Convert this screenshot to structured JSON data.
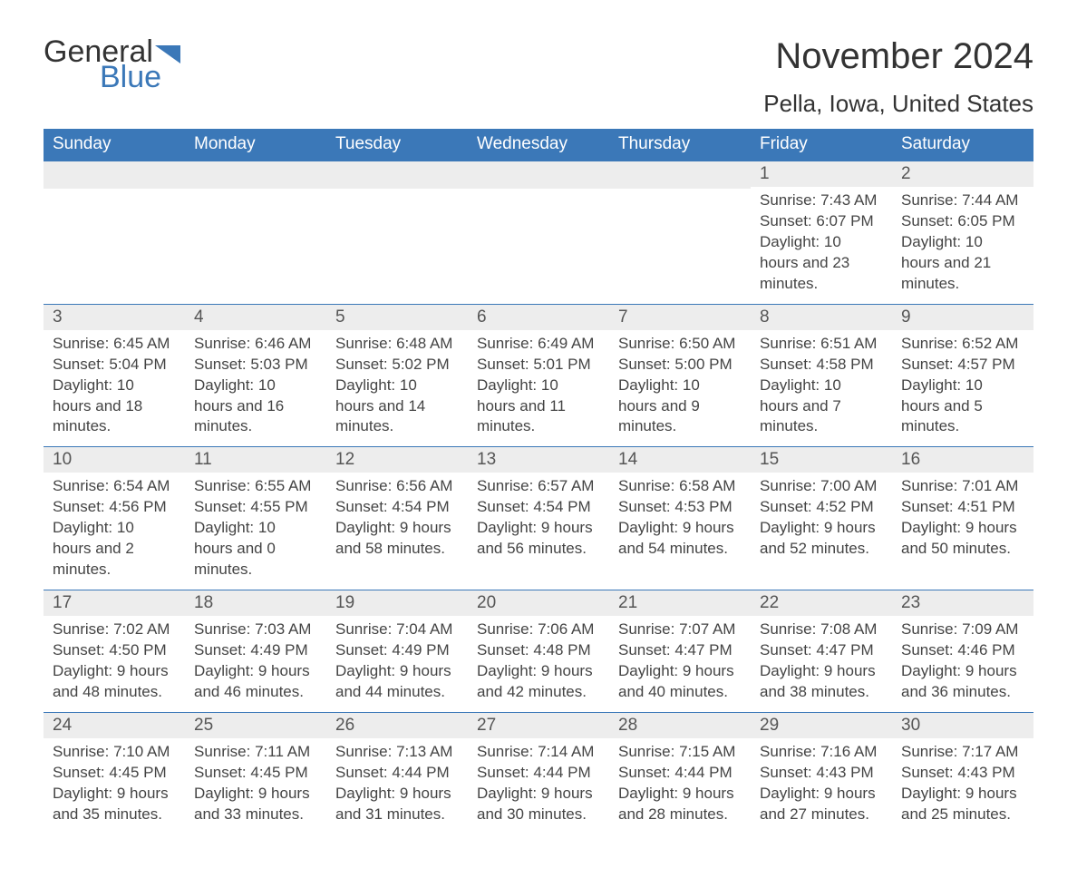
{
  "logo": {
    "general": "General",
    "blue": "Blue",
    "flag_color": "#3b78b8"
  },
  "title": "November 2024",
  "location": "Pella, Iowa, United States",
  "colors": {
    "header_bg": "#3b78b8",
    "header_text": "#ffffff",
    "daynum_bg": "#ededed",
    "text": "#333333",
    "body_text": "#444444",
    "week_divider": "#3b78b8"
  },
  "day_names": [
    "Sunday",
    "Monday",
    "Tuesday",
    "Wednesday",
    "Thursday",
    "Friday",
    "Saturday"
  ],
  "weeks": [
    [
      {
        "blank": true
      },
      {
        "blank": true
      },
      {
        "blank": true
      },
      {
        "blank": true
      },
      {
        "blank": true
      },
      {
        "day": "1",
        "sunrise": "Sunrise: 7:43 AM",
        "sunset": "Sunset: 6:07 PM",
        "daylight": "Daylight: 10 hours and 23 minutes."
      },
      {
        "day": "2",
        "sunrise": "Sunrise: 7:44 AM",
        "sunset": "Sunset: 6:05 PM",
        "daylight": "Daylight: 10 hours and 21 minutes."
      }
    ],
    [
      {
        "day": "3",
        "sunrise": "Sunrise: 6:45 AM",
        "sunset": "Sunset: 5:04 PM",
        "daylight": "Daylight: 10 hours and 18 minutes."
      },
      {
        "day": "4",
        "sunrise": "Sunrise: 6:46 AM",
        "sunset": "Sunset: 5:03 PM",
        "daylight": "Daylight: 10 hours and 16 minutes."
      },
      {
        "day": "5",
        "sunrise": "Sunrise: 6:48 AM",
        "sunset": "Sunset: 5:02 PM",
        "daylight": "Daylight: 10 hours and 14 minutes."
      },
      {
        "day": "6",
        "sunrise": "Sunrise: 6:49 AM",
        "sunset": "Sunset: 5:01 PM",
        "daylight": "Daylight: 10 hours and 11 minutes."
      },
      {
        "day": "7",
        "sunrise": "Sunrise: 6:50 AM",
        "sunset": "Sunset: 5:00 PM",
        "daylight": "Daylight: 10 hours and 9 minutes."
      },
      {
        "day": "8",
        "sunrise": "Sunrise: 6:51 AM",
        "sunset": "Sunset: 4:58 PM",
        "daylight": "Daylight: 10 hours and 7 minutes."
      },
      {
        "day": "9",
        "sunrise": "Sunrise: 6:52 AM",
        "sunset": "Sunset: 4:57 PM",
        "daylight": "Daylight: 10 hours and 5 minutes."
      }
    ],
    [
      {
        "day": "10",
        "sunrise": "Sunrise: 6:54 AM",
        "sunset": "Sunset: 4:56 PM",
        "daylight": "Daylight: 10 hours and 2 minutes."
      },
      {
        "day": "11",
        "sunrise": "Sunrise: 6:55 AM",
        "sunset": "Sunset: 4:55 PM",
        "daylight": "Daylight: 10 hours and 0 minutes."
      },
      {
        "day": "12",
        "sunrise": "Sunrise: 6:56 AM",
        "sunset": "Sunset: 4:54 PM",
        "daylight": "Daylight: 9 hours and 58 minutes."
      },
      {
        "day": "13",
        "sunrise": "Sunrise: 6:57 AM",
        "sunset": "Sunset: 4:54 PM",
        "daylight": "Daylight: 9 hours and 56 minutes."
      },
      {
        "day": "14",
        "sunrise": "Sunrise: 6:58 AM",
        "sunset": "Sunset: 4:53 PM",
        "daylight": "Daylight: 9 hours and 54 minutes."
      },
      {
        "day": "15",
        "sunrise": "Sunrise: 7:00 AM",
        "sunset": "Sunset: 4:52 PM",
        "daylight": "Daylight: 9 hours and 52 minutes."
      },
      {
        "day": "16",
        "sunrise": "Sunrise: 7:01 AM",
        "sunset": "Sunset: 4:51 PM",
        "daylight": "Daylight: 9 hours and 50 minutes."
      }
    ],
    [
      {
        "day": "17",
        "sunrise": "Sunrise: 7:02 AM",
        "sunset": "Sunset: 4:50 PM",
        "daylight": "Daylight: 9 hours and 48 minutes."
      },
      {
        "day": "18",
        "sunrise": "Sunrise: 7:03 AM",
        "sunset": "Sunset: 4:49 PM",
        "daylight": "Daylight: 9 hours and 46 minutes."
      },
      {
        "day": "19",
        "sunrise": "Sunrise: 7:04 AM",
        "sunset": "Sunset: 4:49 PM",
        "daylight": "Daylight: 9 hours and 44 minutes."
      },
      {
        "day": "20",
        "sunrise": "Sunrise: 7:06 AM",
        "sunset": "Sunset: 4:48 PM",
        "daylight": "Daylight: 9 hours and 42 minutes."
      },
      {
        "day": "21",
        "sunrise": "Sunrise: 7:07 AM",
        "sunset": "Sunset: 4:47 PM",
        "daylight": "Daylight: 9 hours and 40 minutes."
      },
      {
        "day": "22",
        "sunrise": "Sunrise: 7:08 AM",
        "sunset": "Sunset: 4:47 PM",
        "daylight": "Daylight: 9 hours and 38 minutes."
      },
      {
        "day": "23",
        "sunrise": "Sunrise: 7:09 AM",
        "sunset": "Sunset: 4:46 PM",
        "daylight": "Daylight: 9 hours and 36 minutes."
      }
    ],
    [
      {
        "day": "24",
        "sunrise": "Sunrise: 7:10 AM",
        "sunset": "Sunset: 4:45 PM",
        "daylight": "Daylight: 9 hours and 35 minutes."
      },
      {
        "day": "25",
        "sunrise": "Sunrise: 7:11 AM",
        "sunset": "Sunset: 4:45 PM",
        "daylight": "Daylight: 9 hours and 33 minutes."
      },
      {
        "day": "26",
        "sunrise": "Sunrise: 7:13 AM",
        "sunset": "Sunset: 4:44 PM",
        "daylight": "Daylight: 9 hours and 31 minutes."
      },
      {
        "day": "27",
        "sunrise": "Sunrise: 7:14 AM",
        "sunset": "Sunset: 4:44 PM",
        "daylight": "Daylight: 9 hours and 30 minutes."
      },
      {
        "day": "28",
        "sunrise": "Sunrise: 7:15 AM",
        "sunset": "Sunset: 4:44 PM",
        "daylight": "Daylight: 9 hours and 28 minutes."
      },
      {
        "day": "29",
        "sunrise": "Sunrise: 7:16 AM",
        "sunset": "Sunset: 4:43 PM",
        "daylight": "Daylight: 9 hours and 27 minutes."
      },
      {
        "day": "30",
        "sunrise": "Sunrise: 7:17 AM",
        "sunset": "Sunset: 4:43 PM",
        "daylight": "Daylight: 9 hours and 25 minutes."
      }
    ]
  ]
}
